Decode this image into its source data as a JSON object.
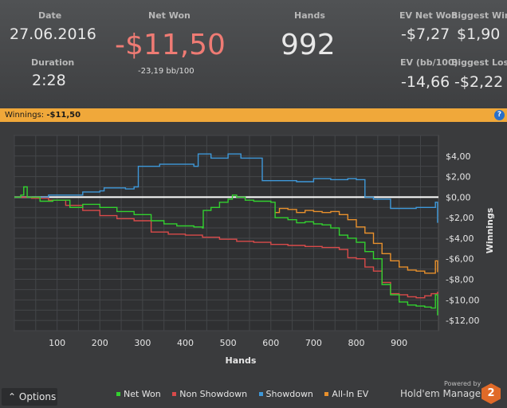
{
  "stats": {
    "date_label": "Date",
    "date": "27.06.2016",
    "duration_label": "Duration",
    "duration": "2:28",
    "net_won_label": "Net Won",
    "net_won": "-$11,50",
    "bb100": "-23,19 bb/100",
    "hands_label": "Hands",
    "hands": "992",
    "ev_net_won_label": "EV Net Won",
    "ev_net_won": "-$7,27",
    "biggest_win_label": "Biggest Win",
    "biggest_win": "$1,90",
    "ev_bb100_label": "EV (bb/100)",
    "ev_bb100": "-14,66",
    "biggest_loss_label": "Biggest Loss",
    "biggest_loss": "-$2,22"
  },
  "winnings_bar": {
    "label": "Winnings:",
    "value": "-$11,50",
    "help": "?"
  },
  "colors": {
    "net_won": "#32d12f",
    "non_showdown": "#d94a4a",
    "showdown": "#3e98d9",
    "allin_ev": "#e8902c",
    "accent": "#f0a83a"
  },
  "bottom": {
    "options": "Options",
    "powered_by": "Powered by",
    "brand": "Hold'em Manager",
    "badge": "2"
  },
  "chart_data": {
    "type": "line",
    "xlabel": "Hands",
    "ylabel": "Winnings",
    "xlim": [
      0,
      992
    ],
    "ylim": [
      -13,
      6
    ],
    "x_ticks": [
      100,
      200,
      300,
      400,
      500,
      600,
      700,
      800,
      900
    ],
    "y_ticks": [
      4,
      2,
      0,
      -2,
      -4,
      -6,
      -8,
      -10,
      -12
    ],
    "y_tick_labels": [
      "$4,00",
      "$2,00",
      "$0,00",
      "-$2,00",
      "-$4,00",
      "-$6,00",
      "-$8,00",
      "-$10,00",
      "-$12,00"
    ],
    "grid": true,
    "legend_position": "bottom",
    "series": [
      {
        "name": "Net Won",
        "color": "#32d12f",
        "points": [
          [
            0,
            0
          ],
          [
            15,
            0.2
          ],
          [
            22,
            1
          ],
          [
            30,
            0
          ],
          [
            60,
            -0.4
          ],
          [
            90,
            -0.3
          ],
          [
            130,
            -1
          ],
          [
            160,
            -0.7
          ],
          [
            200,
            -1
          ],
          [
            240,
            -1.4
          ],
          [
            280,
            -1.7
          ],
          [
            320,
            -2.3
          ],
          [
            350,
            -2.6
          ],
          [
            380,
            -2.8
          ],
          [
            420,
            -2.9
          ],
          [
            440,
            -3
          ],
          [
            442,
            -1.3
          ],
          [
            460,
            -1
          ],
          [
            480,
            -0.5
          ],
          [
            500,
            -0.2
          ],
          [
            510,
            0.2
          ],
          [
            520,
            0
          ],
          [
            540,
            -0.3
          ],
          [
            560,
            -0.4
          ],
          [
            600,
            -0.5
          ],
          [
            610,
            -2
          ],
          [
            640,
            -2.2
          ],
          [
            660,
            -2.5
          ],
          [
            680,
            -2.4
          ],
          [
            700,
            -2.6
          ],
          [
            720,
            -2.7
          ],
          [
            740,
            -3
          ],
          [
            760,
            -3.7
          ],
          [
            780,
            -4
          ],
          [
            800,
            -4.4
          ],
          [
            820,
            -5.3
          ],
          [
            840,
            -6
          ],
          [
            860,
            -8.5
          ],
          [
            880,
            -9.5
          ],
          [
            900,
            -10.2
          ],
          [
            920,
            -10.5
          ],
          [
            940,
            -10.6
          ],
          [
            960,
            -10.7
          ],
          [
            975,
            -10.8
          ],
          [
            985,
            -9.5
          ],
          [
            990,
            -11.5
          ]
        ]
      },
      {
        "name": "Non Showdown",
        "color": "#d94a4a",
        "points": [
          [
            0,
            0
          ],
          [
            40,
            -0.1
          ],
          [
            80,
            -0.3
          ],
          [
            120,
            -0.8
          ],
          [
            160,
            -1.3
          ],
          [
            200,
            -1.8
          ],
          [
            240,
            -2.1
          ],
          [
            280,
            -2.3
          ],
          [
            320,
            -3.4
          ],
          [
            360,
            -3.6
          ],
          [
            400,
            -3.7
          ],
          [
            440,
            -3.9
          ],
          [
            480,
            -4.1
          ],
          [
            520,
            -4.3
          ],
          [
            560,
            -4.4
          ],
          [
            600,
            -4.6
          ],
          [
            640,
            -4.7
          ],
          [
            680,
            -4.8
          ],
          [
            720,
            -4.9
          ],
          [
            760,
            -5.1
          ],
          [
            780,
            -5.9
          ],
          [
            800,
            -6
          ],
          [
            820,
            -6.8
          ],
          [
            840,
            -7.2
          ],
          [
            860,
            -8.3
          ],
          [
            880,
            -9.4
          ],
          [
            900,
            -9.5
          ],
          [
            920,
            -9.7
          ],
          [
            940,
            -9.8
          ],
          [
            960,
            -9.6
          ],
          [
            975,
            -9.4
          ],
          [
            990,
            -9.2
          ]
        ]
      },
      {
        "name": "Showdown",
        "color": "#3e98d9",
        "points": [
          [
            0,
            0
          ],
          [
            80,
            0.2
          ],
          [
            160,
            0.5
          ],
          [
            200,
            0.6
          ],
          [
            210,
            0.9
          ],
          [
            240,
            0.9
          ],
          [
            260,
            0.8
          ],
          [
            280,
            1
          ],
          [
            290,
            3
          ],
          [
            330,
            3
          ],
          [
            340,
            3.2
          ],
          [
            420,
            3
          ],
          [
            430,
            4.2
          ],
          [
            460,
            3.8
          ],
          [
            480,
            3.8
          ],
          [
            500,
            4.2
          ],
          [
            530,
            3.8
          ],
          [
            580,
            1.6
          ],
          [
            620,
            1.6
          ],
          [
            660,
            1.5
          ],
          [
            700,
            1.8
          ],
          [
            740,
            1.7
          ],
          [
            780,
            1.8
          ],
          [
            800,
            1.7
          ],
          [
            820,
            0
          ],
          [
            840,
            -0.2
          ],
          [
            860,
            -0.2
          ],
          [
            880,
            -1.1
          ],
          [
            920,
            -1.1
          ],
          [
            940,
            -1
          ],
          [
            960,
            -1
          ],
          [
            975,
            -1
          ],
          [
            985,
            -0.5
          ],
          [
            990,
            -2.5
          ]
        ]
      },
      {
        "name": "All-In EV",
        "color": "#e8902c",
        "points": [
          [
            610,
            -1.5
          ],
          [
            620,
            -1.1
          ],
          [
            640,
            -1.2
          ],
          [
            660,
            -1.5
          ],
          [
            680,
            -1.3
          ],
          [
            700,
            -1.4
          ],
          [
            720,
            -1.5
          ],
          [
            740,
            -1.4
          ],
          [
            760,
            -1.7
          ],
          [
            780,
            -2.2
          ],
          [
            800,
            -2.9
          ],
          [
            820,
            -3.5
          ],
          [
            840,
            -4.5
          ],
          [
            860,
            -5.5
          ],
          [
            880,
            -6.2
          ],
          [
            900,
            -6.8
          ],
          [
            920,
            -7.1
          ],
          [
            940,
            -7.2
          ],
          [
            960,
            -7.4
          ],
          [
            975,
            -7.4
          ],
          [
            985,
            -6.2
          ],
          [
            990,
            -7.3
          ]
        ]
      }
    ]
  }
}
